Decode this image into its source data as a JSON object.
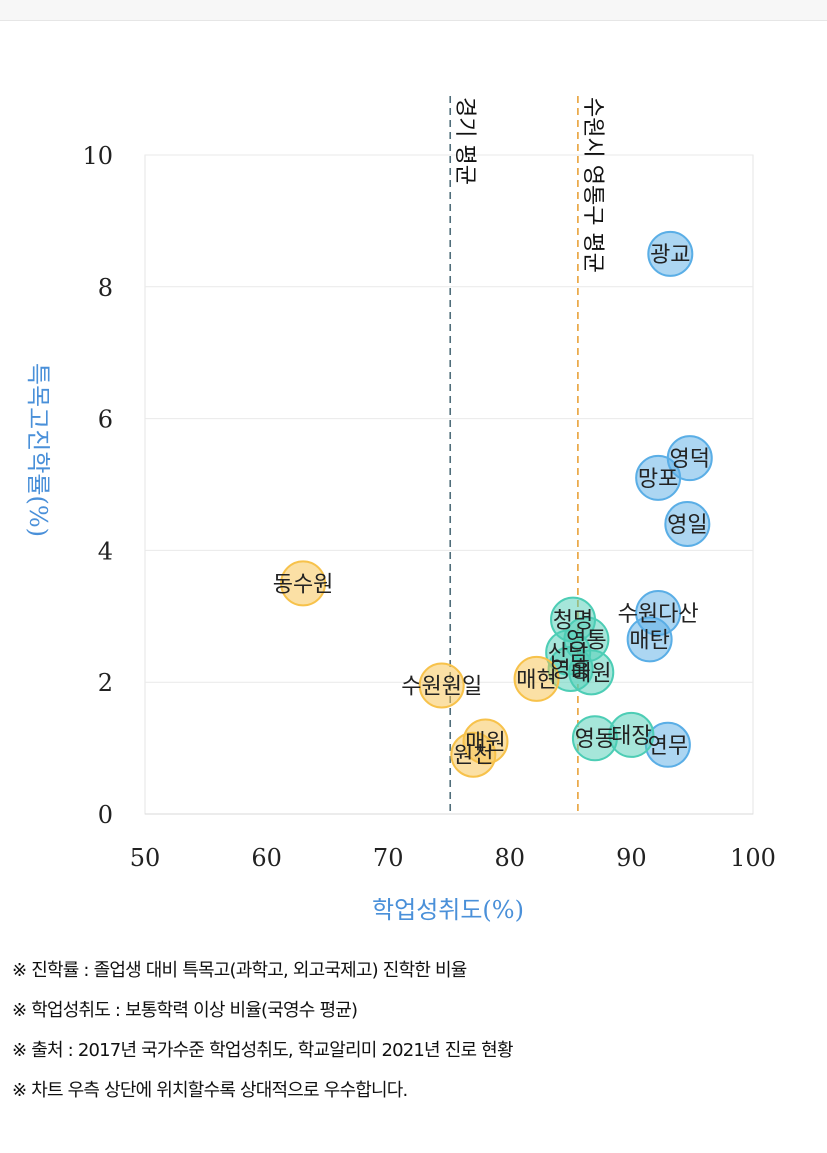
{
  "chart_data": {
    "type": "scatter",
    "xlabel": "학업성취도(%)",
    "ylabel": "특목고진학률(%)",
    "xlim": [
      50,
      100
    ],
    "ylim": [
      0,
      10
    ],
    "xticks": [
      "50",
      "60",
      "70",
      "80",
      "90",
      "100"
    ],
    "yticks": [
      "0",
      "2",
      "4",
      "6",
      "8",
      "10"
    ],
    "grid": true,
    "reference_lines": [
      {
        "label": "경기 평균",
        "x": 75.1,
        "color": "#4f6d7a"
      },
      {
        "label": "수원시 영통구 평균",
        "x": 85.6,
        "color": "#e8a23a"
      }
    ],
    "points": [
      {
        "label": "광교",
        "x": 93.2,
        "y": 8.5,
        "color": "#5aaee6"
      },
      {
        "label": "영덕",
        "x": 94.8,
        "y": 5.4,
        "color": "#5aaee6"
      },
      {
        "label": "망포",
        "x": 92.2,
        "y": 5.1,
        "color": "#5aaee6"
      },
      {
        "label": "영일",
        "x": 94.6,
        "y": 4.4,
        "color": "#5aaee6"
      },
      {
        "label": "수원다산",
        "x": 92.2,
        "y": 3.05,
        "color": "#5aaee6"
      },
      {
        "label": "매탄",
        "x": 91.5,
        "y": 2.65,
        "color": "#5aaee6"
      },
      {
        "label": "연무",
        "x": 93.0,
        "y": 1.05,
        "color": "#5aaee6"
      },
      {
        "label": "청명",
        "x": 85.2,
        "y": 2.95,
        "color": "#4dcdb5"
      },
      {
        "label": "영통",
        "x": 86.3,
        "y": 2.65,
        "color": "#4dcdb5"
      },
      {
        "label": "산남",
        "x": 84.8,
        "y": 2.45,
        "color": "#4dcdb5"
      },
      {
        "label": "영흥",
        "x": 85.0,
        "y": 2.2,
        "color": "#4dcdb5"
      },
      {
        "label": "매원",
        "x": 86.7,
        "y": 2.15,
        "color": "#4dcdb5"
      },
      {
        "label": "영동",
        "x": 87.0,
        "y": 1.15,
        "color": "#4dcdb5"
      },
      {
        "label": "태장",
        "x": 90.0,
        "y": 1.2,
        "color": "#4dcdb5"
      },
      {
        "label": "동수원",
        "x": 63.0,
        "y": 3.5,
        "color": "#f7c24b"
      },
      {
        "label": "수원원일",
        "x": 74.4,
        "y": 1.95,
        "color": "#f7c24b"
      },
      {
        "label": "매현",
        "x": 82.2,
        "y": 2.05,
        "color": "#f7c24b"
      },
      {
        "label": "매원",
        "x": 78.0,
        "y": 1.1,
        "color": "#f7c24b"
      },
      {
        "label": "원천",
        "x": 77.0,
        "y": 0.9,
        "color": "#f7c24b"
      }
    ],
    "notes": [
      "※ 진학률 : 졸업생 대비 특목고(과학고, 외고국제고) 진학한 비율",
      "※ 학업성취도 : 보통학력 이상 비율(국영수 평균)",
      "※ 출처 : 2017년 국가수준 학업성취도, 학교알리미 2021년 진로 현황",
      "※ 차트 우측 상단에 위치할수록 상대적으로 우수합니다."
    ]
  }
}
